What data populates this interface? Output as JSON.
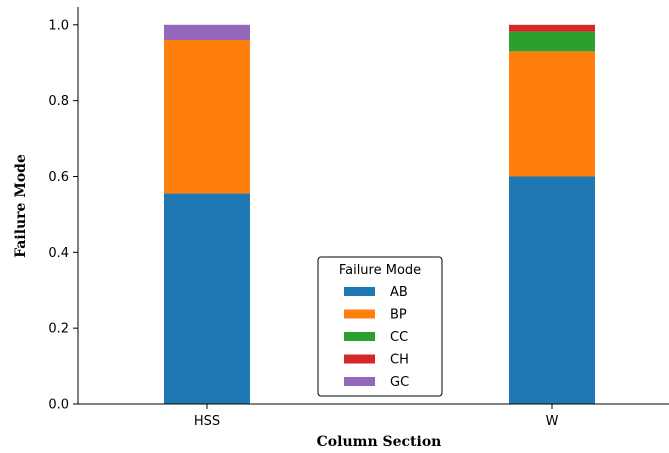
{
  "chart_data": {
    "type": "bar",
    "stacked": true,
    "categories": [
      "HSS",
      "W"
    ],
    "series": [
      {
        "name": "AB",
        "values": [
          0.555,
          0.6
        ],
        "color": "#1f77b4"
      },
      {
        "name": "BP",
        "values": [
          0.405,
          0.33
        ],
        "color": "#ff7f0e"
      },
      {
        "name": "CC",
        "values": [
          0.0,
          0.052
        ],
        "color": "#2ca02c"
      },
      {
        "name": "CH",
        "values": [
          0.0,
          0.018
        ],
        "color": "#d62728"
      },
      {
        "name": "GC",
        "values": [
          0.04,
          0.0
        ],
        "color": "#9467bd"
      }
    ],
    "xlabel": "Column Section",
    "ylabel": "Failure Mode",
    "ylim": [
      0,
      1.0
    ],
    "yticks": [
      "0.0",
      "0.2",
      "0.4",
      "0.6",
      "0.8",
      "1.0"
    ],
    "legend": {
      "title": "Failure Mode",
      "position": "lower-center"
    },
    "grid": false
  }
}
